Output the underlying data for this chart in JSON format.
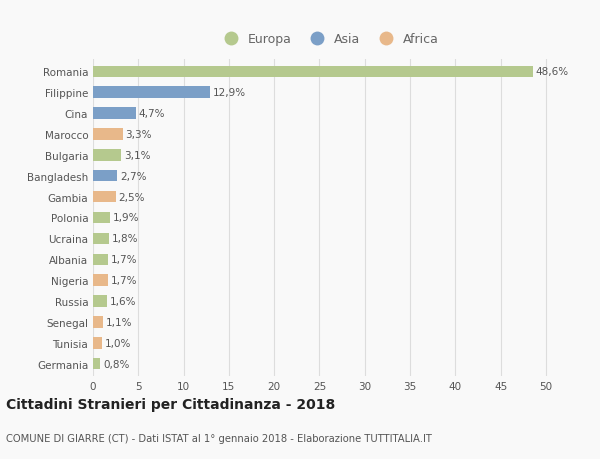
{
  "categories": [
    "Romania",
    "Filippine",
    "Cina",
    "Marocco",
    "Bulgaria",
    "Bangladesh",
    "Gambia",
    "Polonia",
    "Ucraina",
    "Albania",
    "Nigeria",
    "Russia",
    "Senegal",
    "Tunisia",
    "Germania"
  ],
  "values": [
    48.6,
    12.9,
    4.7,
    3.3,
    3.1,
    2.7,
    2.5,
    1.9,
    1.8,
    1.7,
    1.7,
    1.6,
    1.1,
    1.0,
    0.8
  ],
  "labels": [
    "48,6%",
    "12,9%",
    "4,7%",
    "3,3%",
    "3,1%",
    "2,7%",
    "2,5%",
    "1,9%",
    "1,8%",
    "1,7%",
    "1,7%",
    "1,6%",
    "1,1%",
    "1,0%",
    "0,8%"
  ],
  "continents": [
    "Europa",
    "Asia",
    "Asia",
    "Africa",
    "Europa",
    "Asia",
    "Africa",
    "Europa",
    "Europa",
    "Europa",
    "Africa",
    "Europa",
    "Africa",
    "Africa",
    "Europa"
  ],
  "colors": {
    "Europa": "#b5c98e",
    "Asia": "#7b9fc7",
    "Africa": "#e8b88a"
  },
  "xlim": [
    0,
    52
  ],
  "xticks": [
    0,
    5,
    10,
    15,
    20,
    25,
    30,
    35,
    40,
    45,
    50
  ],
  "title": "Cittadini Stranieri per Cittadinanza - 2018",
  "subtitle": "COMUNE DI GIARRE (CT) - Dati ISTAT al 1° gennaio 2018 - Elaborazione TUTTITALIA.IT",
  "background_color": "#f9f9f9",
  "grid_color": "#dddddd",
  "bar_height": 0.55,
  "label_fontsize": 7.5,
  "tick_fontsize": 7.5,
  "title_fontsize": 10,
  "subtitle_fontsize": 7.2
}
